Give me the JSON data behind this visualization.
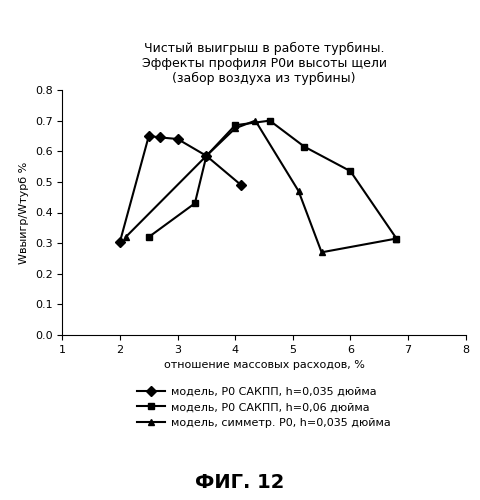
{
  "title_line1": "Чистый выигрыш в работе турбины.",
  "title_line2": "Эффекты профиля Р0и высоты щели",
  "title_line3": "(забор воздуха из турбины)",
  "xlabel": "отношение массовых расходов, %",
  "ylabel": "Wвыигр/Wтурб %",
  "xlim": [
    1,
    8
  ],
  "ylim": [
    0,
    0.8
  ],
  "xticks": [
    1,
    2,
    3,
    4,
    5,
    6,
    7,
    8
  ],
  "yticks": [
    0.0,
    0.1,
    0.2,
    0.3,
    0.4,
    0.5,
    0.6,
    0.7,
    0.8
  ],
  "fig_caption": "ФИГ. 12",
  "series": [
    {
      "label": "модель, Р0 САКПП, h=0,035 дюйма",
      "x": [
        2.0,
        2.5,
        2.7,
        3.0,
        3.5,
        4.1
      ],
      "y": [
        0.305,
        0.65,
        0.645,
        0.64,
        0.585,
        0.49
      ],
      "marker": "D",
      "color": "#000000",
      "markersize": 5,
      "linewidth": 1.5
    },
    {
      "label": "модель, Р0 САКПП, h=0,06 дюйма",
      "x": [
        2.5,
        3.3,
        3.5,
        4.0,
        4.6,
        5.2,
        6.0,
        6.8
      ],
      "y": [
        0.32,
        0.43,
        0.585,
        0.685,
        0.7,
        0.615,
        0.535,
        0.315
      ],
      "marker": "s",
      "color": "#000000",
      "markersize": 5,
      "linewidth": 1.5
    },
    {
      "label": "модель, симметр. Р0, h=0,035 дюйма",
      "x": [
        2.1,
        3.5,
        4.0,
        4.35,
        5.1,
        5.5,
        6.8
      ],
      "y": [
        0.32,
        0.585,
        0.675,
        0.7,
        0.47,
        0.27,
        0.315
      ],
      "marker": "^",
      "color": "#000000",
      "markersize": 5,
      "linewidth": 1.5
    }
  ],
  "background_color": "#ffffff",
  "title_fontsize": 9,
  "axis_label_fontsize": 8,
  "tick_fontsize": 8,
  "legend_fontsize": 8,
  "caption_fontsize": 14
}
